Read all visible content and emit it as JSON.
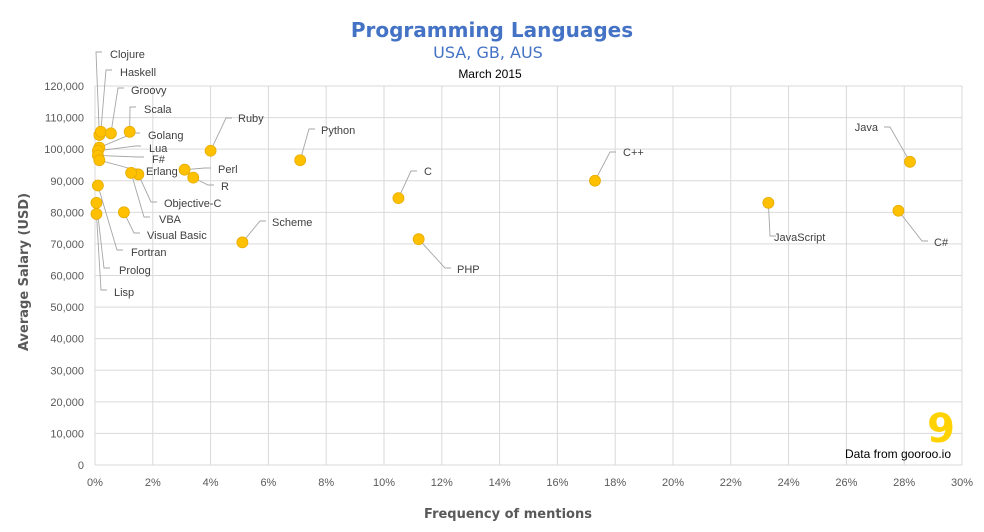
{
  "chart_data": {
    "type": "scatter",
    "title": "Programming Languages",
    "subtitle": "USA, GB, AUS",
    "date": "March 2015",
    "xlabel": "Frequency of mentions",
    "ylabel": "Average Salary (USD)",
    "xlim": [
      0,
      30
    ],
    "ylim": [
      0,
      120000
    ],
    "x_ticks": [
      "0%",
      "2%",
      "4%",
      "6%",
      "8%",
      "10%",
      "12%",
      "14%",
      "16%",
      "18%",
      "20%",
      "22%",
      "24%",
      "26%",
      "28%",
      "30%"
    ],
    "y_ticks": [
      "0",
      "10,000",
      "20,000",
      "30,000",
      "40,000",
      "50,000",
      "60,000",
      "70,000",
      "80,000",
      "90,000",
      "100,000",
      "110,000",
      "120,000"
    ],
    "grid": true,
    "marker_color": "#ffc000",
    "series": [
      {
        "name": "Clojure",
        "x": 0.15,
        "y": 104500
      },
      {
        "name": "Haskell",
        "x": 0.2,
        "y": 105500
      },
      {
        "name": "Groovy",
        "x": 0.55,
        "y": 105000
      },
      {
        "name": "Scala",
        "x": 1.2,
        "y": 105500
      },
      {
        "name": "Golang",
        "x": 0.15,
        "y": 100500
      },
      {
        "name": "Lua",
        "x": 0.1,
        "y": 99500
      },
      {
        "name": "F#",
        "x": 0.1,
        "y": 98000
      },
      {
        "name": "Erlang",
        "x": 0.15,
        "y": 96500
      },
      {
        "name": "Objective-C",
        "x": 1.5,
        "y": 92000
      },
      {
        "name": "VBA",
        "x": 1.25,
        "y": 92500
      },
      {
        "name": "Visual Basic",
        "x": 1.0,
        "y": 80000
      },
      {
        "name": "Fortran",
        "x": 0.1,
        "y": 88500
      },
      {
        "name": "Prolog",
        "x": 0.05,
        "y": 83000
      },
      {
        "name": "Lisp",
        "x": 0.05,
        "y": 79500
      },
      {
        "name": "Ruby",
        "x": 4.0,
        "y": 99500
      },
      {
        "name": "Perl",
        "x": 3.1,
        "y": 93500
      },
      {
        "name": "R",
        "x": 3.4,
        "y": 91000
      },
      {
        "name": "Python",
        "x": 7.1,
        "y": 96500
      },
      {
        "name": "Scheme",
        "x": 5.1,
        "y": 70500
      },
      {
        "name": "C",
        "x": 10.5,
        "y": 84500
      },
      {
        "name": "PHP",
        "x": 11.2,
        "y": 71500
      },
      {
        "name": "C++",
        "x": 17.3,
        "y": 90000
      },
      {
        "name": "JavaScript",
        "x": 23.3,
        "y": 83000
      },
      {
        "name": "Java",
        "x": 28.2,
        "y": 96000
      },
      {
        "name": "C#",
        "x": 27.8,
        "y": 80500
      }
    ],
    "source_label": "Data from gooroo.io",
    "logo_glyph": "9",
    "logo_color": "#ffd200"
  }
}
